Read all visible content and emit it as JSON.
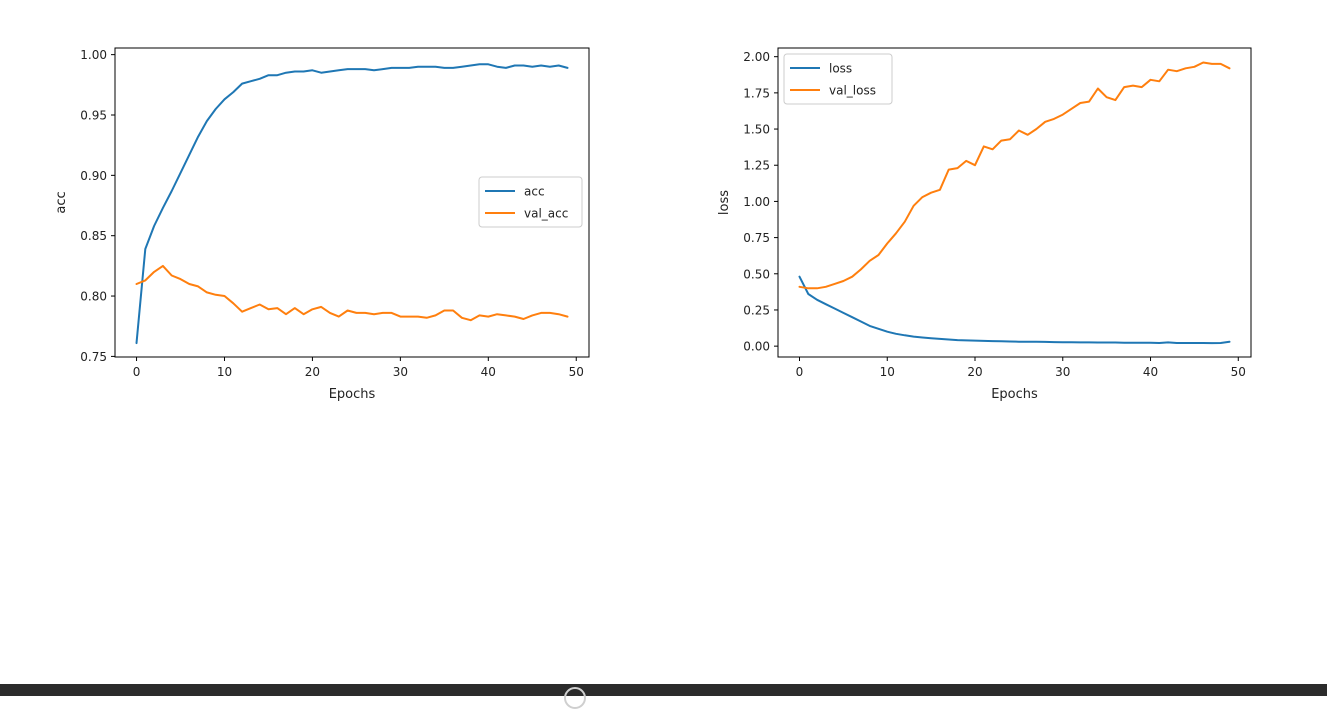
{
  "chart_data": [
    {
      "type": "line",
      "xlabel": "Epochs",
      "ylabel": "acc",
      "xlim": [
        -2.45,
        51.45
      ],
      "ylim": [
        0.7495,
        1.0055
      ],
      "xticks": [
        0,
        10,
        20,
        30,
        40,
        50
      ],
      "xtick_labels": [
        "0",
        "10",
        "20",
        "30",
        "40",
        "50"
      ],
      "yticks": [
        0.75,
        0.8,
        0.85,
        0.9,
        0.95,
        1.0
      ],
      "ytick_labels": [
        "0.75",
        "0.80",
        "0.85",
        "0.90",
        "0.95",
        "1.00"
      ],
      "legend_position": "center-right",
      "grid": false,
      "series": [
        {
          "name": "acc",
          "color": "#1f77b4",
          "values": [
            0.761,
            0.839,
            0.858,
            0.873,
            0.887,
            0.902,
            0.917,
            0.932,
            0.945,
            0.955,
            0.963,
            0.969,
            0.976,
            0.978,
            0.98,
            0.983,
            0.983,
            0.985,
            0.986,
            0.986,
            0.987,
            0.985,
            0.986,
            0.987,
            0.988,
            0.988,
            0.988,
            0.987,
            0.988,
            0.989,
            0.989,
            0.989,
            0.99,
            0.99,
            0.99,
            0.989,
            0.989,
            0.99,
            0.991,
            0.992,
            0.992,
            0.99,
            0.989,
            0.991,
            0.991,
            0.99,
            0.991,
            0.99,
            0.991,
            0.989
          ]
        },
        {
          "name": "val_acc",
          "color": "#ff7f0e",
          "values": [
            0.81,
            0.813,
            0.82,
            0.825,
            0.817,
            0.814,
            0.81,
            0.808,
            0.803,
            0.801,
            0.8,
            0.794,
            0.787,
            0.79,
            0.793,
            0.789,
            0.79,
            0.785,
            0.79,
            0.785,
            0.789,
            0.791,
            0.786,
            0.783,
            0.788,
            0.786,
            0.786,
            0.785,
            0.786,
            0.786,
            0.783,
            0.783,
            0.783,
            0.782,
            0.784,
            0.788,
            0.788,
            0.782,
            0.78,
            0.784,
            0.783,
            0.785,
            0.784,
            0.783,
            0.781,
            0.784,
            0.786,
            0.786,
            0.785,
            0.783
          ]
        }
      ]
    },
    {
      "type": "line",
      "xlabel": "Epochs",
      "ylabel": "loss",
      "xlim": [
        -2.45,
        51.45
      ],
      "ylim": [
        -0.075,
        2.06
      ],
      "xticks": [
        0,
        10,
        20,
        30,
        40,
        50
      ],
      "xtick_labels": [
        "0",
        "10",
        "20",
        "30",
        "40",
        "50"
      ],
      "yticks": [
        0.0,
        0.25,
        0.5,
        0.75,
        1.0,
        1.25,
        1.5,
        1.75,
        2.0
      ],
      "ytick_labels": [
        "0.00",
        "0.25",
        "0.50",
        "0.75",
        "1.00",
        "1.25",
        "1.50",
        "1.75",
        "2.00"
      ],
      "legend_position": "upper-left",
      "grid": false,
      "series": [
        {
          "name": "loss",
          "color": "#1f77b4",
          "values": [
            0.48,
            0.36,
            0.32,
            0.29,
            0.26,
            0.23,
            0.2,
            0.17,
            0.14,
            0.12,
            0.1,
            0.085,
            0.075,
            0.066,
            0.06,
            0.055,
            0.05,
            0.046,
            0.042,
            0.04,
            0.038,
            0.036,
            0.035,
            0.034,
            0.032,
            0.031,
            0.03,
            0.03,
            0.029,
            0.028,
            0.027,
            0.027,
            0.026,
            0.026,
            0.025,
            0.025,
            0.025,
            0.024,
            0.024,
            0.023,
            0.023,
            0.022,
            0.026,
            0.022,
            0.022,
            0.022,
            0.022,
            0.021,
            0.022,
            0.03
          ]
        },
        {
          "name": "val_loss",
          "color": "#ff7f0e",
          "values": [
            0.41,
            0.4,
            0.4,
            0.41,
            0.43,
            0.45,
            0.48,
            0.53,
            0.59,
            0.63,
            0.71,
            0.78,
            0.86,
            0.97,
            1.03,
            1.06,
            1.08,
            1.22,
            1.23,
            1.28,
            1.25,
            1.38,
            1.36,
            1.42,
            1.43,
            1.49,
            1.46,
            1.5,
            1.55,
            1.57,
            1.6,
            1.64,
            1.68,
            1.69,
            1.78,
            1.72,
            1.7,
            1.79,
            1.8,
            1.79,
            1.84,
            1.83,
            1.91,
            1.9,
            1.92,
            1.93,
            1.96,
            1.95,
            1.95,
            1.92
          ]
        }
      ]
    }
  ]
}
